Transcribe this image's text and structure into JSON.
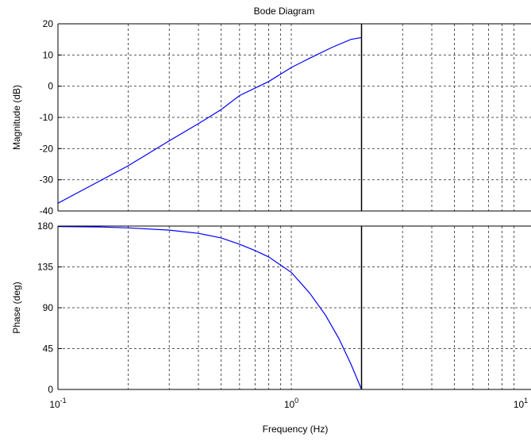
{
  "chart_data": {
    "type": "line",
    "title": "Bode Diagram",
    "xlabel": "Frequency  (Hz)",
    "xscale": "log",
    "xlim": [
      0.1,
      10
    ],
    "grid": true,
    "cursor_frequency": 2,
    "x_ticks": [
      {
        "base": "10",
        "exp": "-1"
      },
      {
        "base": "10",
        "exp": "0"
      },
      {
        "base": "10",
        "exp": "1"
      }
    ],
    "panels": [
      {
        "name": "magnitude",
        "ylabel": "Magnitude (dB)",
        "ylim": [
          -40,
          20
        ],
        "yticks": [
          "20",
          "10",
          "0",
          "-10",
          "-20",
          "-30",
          "-40"
        ],
        "ytick_values": [
          20,
          10,
          0,
          -10,
          -20,
          -30,
          -40
        ],
        "series": [
          {
            "color": "#0000ff",
            "x": [
              0.1,
              0.15,
              0.2,
              0.3,
              0.4,
              0.5,
              0.6,
              0.8,
              1.0,
              1.2,
              1.5,
              1.8,
              2.0
            ],
            "values": [
              -37.5,
              -30.5,
              -25.5,
              -17.5,
              -12.0,
              -7.5,
              -3.0,
              1.5,
              6.0,
              9.0,
              12.5,
              15.0,
              15.6
            ]
          }
        ]
      },
      {
        "name": "phase",
        "ylabel": "Phase (deg)",
        "ylim": [
          0,
          180
        ],
        "yticks": [
          "180",
          "135",
          "90",
          "45",
          "0"
        ],
        "ytick_values": [
          180,
          135,
          90,
          45,
          0
        ],
        "series": [
          {
            "color": "#0000ff",
            "x": [
              0.1,
              0.15,
              0.2,
              0.3,
              0.4,
              0.5,
              0.6,
              0.7,
              0.8,
              1.0,
              1.2,
              1.4,
              1.6,
              1.8,
              2.0
            ],
            "values": [
              179.5,
              179.0,
              178.0,
              175.5,
              172.0,
              167.0,
              160.0,
              153.0,
              146.0,
              129.0,
              106.0,
              82.0,
              56.0,
              28.0,
              0.0
            ]
          }
        ]
      }
    ]
  }
}
